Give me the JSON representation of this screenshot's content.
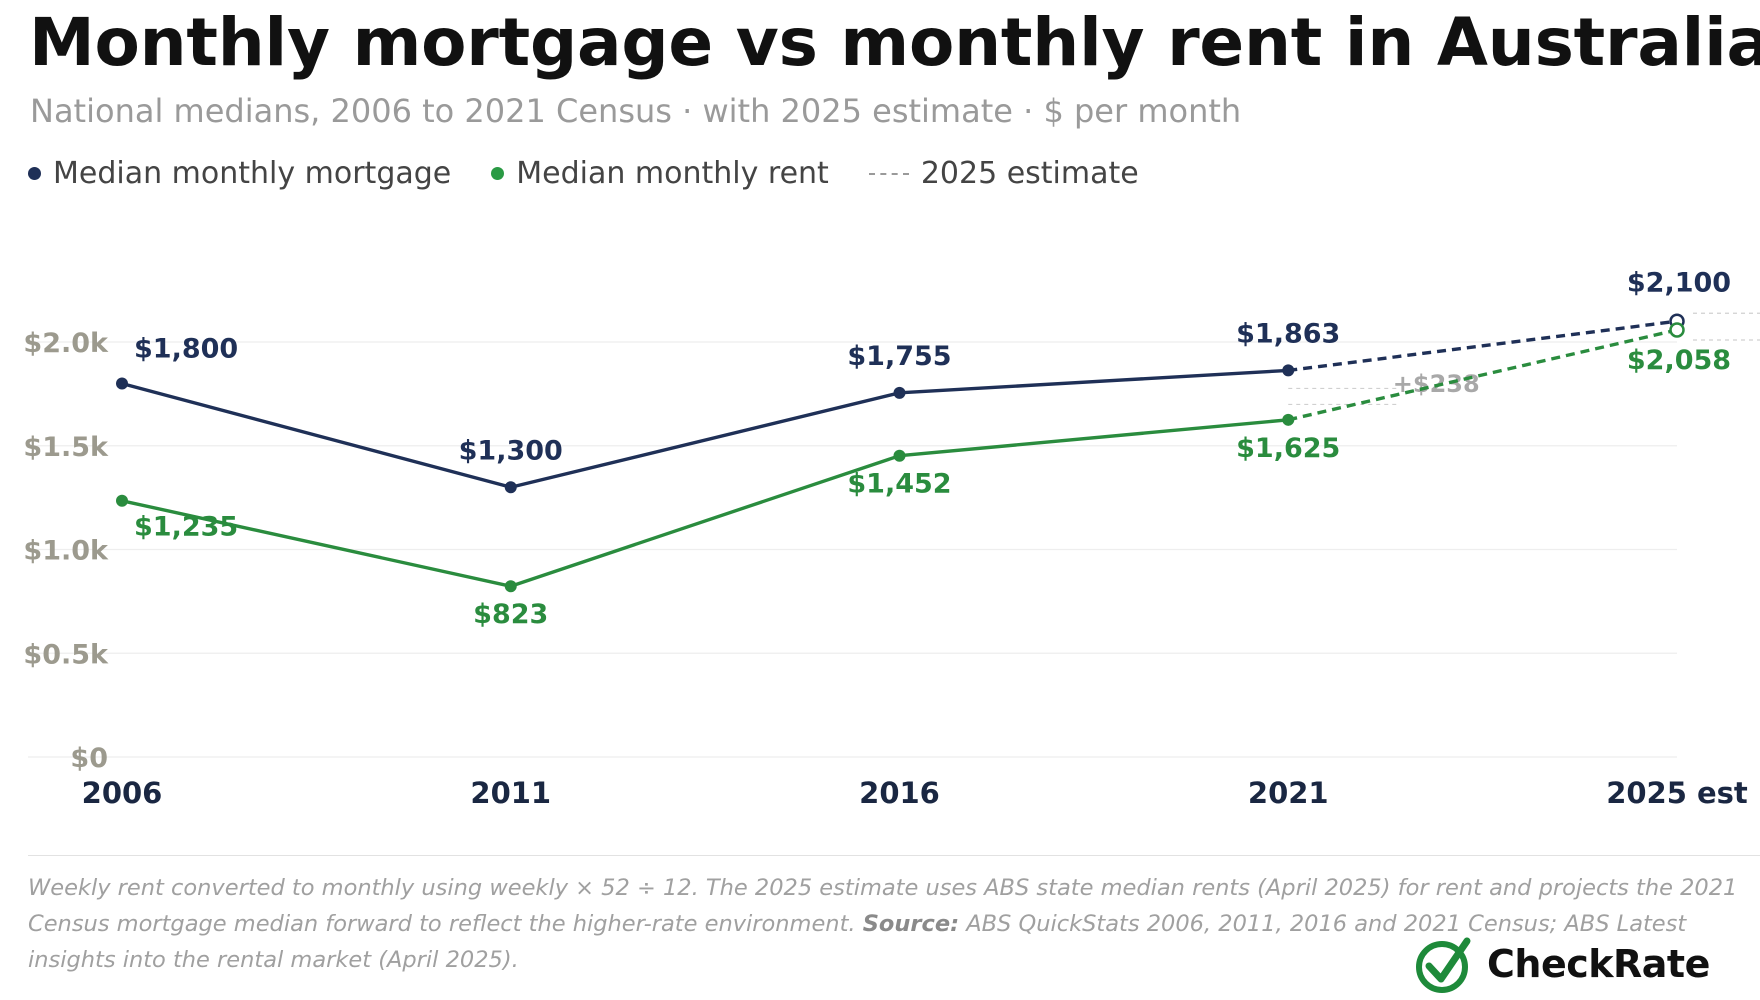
{
  "header": {
    "title": "Monthly mortgage vs monthly rent in Australia",
    "subtitle": "National medians, 2006 to 2021 Census · with 2025 estimate · $ per month"
  },
  "legend": {
    "mortgage": "Median monthly mortgage",
    "rent": "Median monthly rent",
    "estimate": "2025 estimate"
  },
  "chart_data": {
    "type": "line",
    "categories": [
      "2006",
      "2011",
      "2016",
      "2021",
      "2025 est"
    ],
    "series": [
      {
        "name": "Median monthly mortgage",
        "color": "#1f3057",
        "values": [
          1800,
          1300,
          1755,
          1863,
          2100
        ],
        "labels": [
          "$1,800",
          "$1,300",
          "$1,755",
          "$1,863",
          "$2,100"
        ]
      },
      {
        "name": "Median monthly rent",
        "color": "#2a8c3e",
        "values": [
          1235,
          823,
          1452,
          1625,
          2058
        ],
        "labels": [
          "$1,235",
          "$823",
          "$1,452",
          "$1,625",
          "$2,058"
        ]
      }
    ],
    "estimate_index": 4,
    "gap_annotation": {
      "at": "2021",
      "text": "+$238"
    },
    "y_ticks": [
      0,
      500,
      1000,
      1500,
      2000
    ],
    "y_tick_labels": [
      "$0",
      "$0.5k",
      "$1.0k",
      "$1.5k",
      "$2.0k"
    ],
    "ylim": [
      0,
      2200
    ],
    "grid": true
  },
  "footnote": {
    "text": "Weekly rent converted to monthly using weekly × 52 ÷ 12. The 2025 estimate uses ABS state median rents (April 2025) for rent and projects the 2021 Census mortgage median forward to reflect the higher-rate environment.",
    "source_label": "Source:",
    "source_text": "ABS QuickStats 2006, 2011, 2016 and 2021 Census; ABS Latest insights into the rental market (April 2025)."
  },
  "brand": {
    "name": "CheckRate",
    "icon": "checkmark-circle-icon",
    "color": "#1e8a3a"
  }
}
